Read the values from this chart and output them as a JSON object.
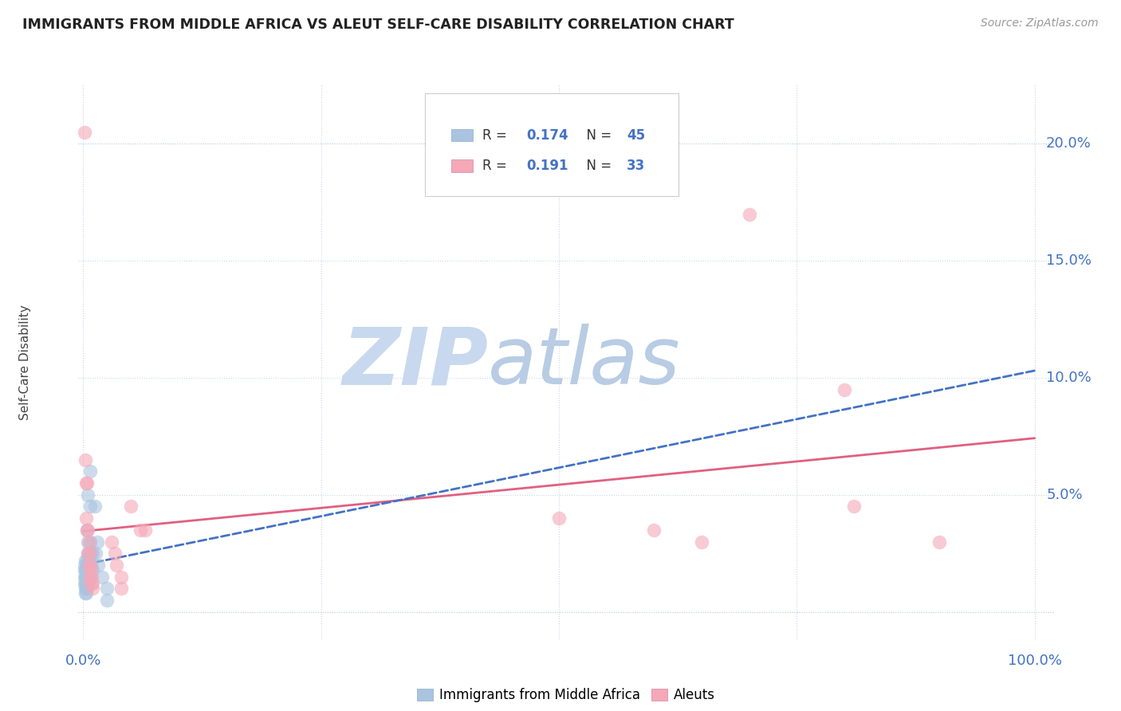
{
  "title": "IMMIGRANTS FROM MIDDLE AFRICA VS ALEUT SELF-CARE DISABILITY CORRELATION CHART",
  "source": "Source: ZipAtlas.com",
  "ylabel": "Self-Care Disability",
  "y_ticks": [
    0.0,
    0.05,
    0.1,
    0.15,
    0.2
  ],
  "y_tick_labels": [
    "",
    "5.0%",
    "10.0%",
    "15.0%",
    "20.0%"
  ],
  "R_blue": 0.174,
  "N_blue": 45,
  "R_pink": 0.191,
  "N_pink": 33,
  "blue_color": "#aac4e0",
  "pink_color": "#f4a8b8",
  "trendline_blue_color": "#4472c4",
  "trendline_pink_color": "#e06080",
  "blue_points": [
    [
      0.001,
      0.02
    ],
    [
      0.001,
      0.018
    ],
    [
      0.001,
      0.015
    ],
    [
      0.001,
      0.012
    ],
    [
      0.002,
      0.022
    ],
    [
      0.002,
      0.018
    ],
    [
      0.002,
      0.015
    ],
    [
      0.002,
      0.012
    ],
    [
      0.002,
      0.01
    ],
    [
      0.002,
      0.008
    ],
    [
      0.003,
      0.02
    ],
    [
      0.003,
      0.018
    ],
    [
      0.003,
      0.015
    ],
    [
      0.003,
      0.012
    ],
    [
      0.003,
      0.01
    ],
    [
      0.003,
      0.008
    ],
    [
      0.004,
      0.035
    ],
    [
      0.004,
      0.022
    ],
    [
      0.004,
      0.018
    ],
    [
      0.004,
      0.015
    ],
    [
      0.004,
      0.012
    ],
    [
      0.004,
      0.01
    ],
    [
      0.005,
      0.05
    ],
    [
      0.005,
      0.03
    ],
    [
      0.005,
      0.025
    ],
    [
      0.005,
      0.02
    ],
    [
      0.005,
      0.015
    ],
    [
      0.005,
      0.012
    ],
    [
      0.006,
      0.025
    ],
    [
      0.006,
      0.02
    ],
    [
      0.006,
      0.015
    ],
    [
      0.007,
      0.06
    ],
    [
      0.007,
      0.045
    ],
    [
      0.007,
      0.03
    ],
    [
      0.008,
      0.025
    ],
    [
      0.008,
      0.02
    ],
    [
      0.01,
      0.025
    ],
    [
      0.01,
      0.018
    ],
    [
      0.012,
      0.045
    ],
    [
      0.013,
      0.025
    ],
    [
      0.015,
      0.03
    ],
    [
      0.016,
      0.02
    ],
    [
      0.02,
      0.015
    ],
    [
      0.025,
      0.01
    ],
    [
      0.025,
      0.005
    ]
  ],
  "pink_points": [
    [
      0.001,
      0.205
    ],
    [
      0.002,
      0.065
    ],
    [
      0.003,
      0.055
    ],
    [
      0.003,
      0.04
    ],
    [
      0.004,
      0.055
    ],
    [
      0.004,
      0.035
    ],
    [
      0.005,
      0.035
    ],
    [
      0.005,
      0.025
    ],
    [
      0.006,
      0.03
    ],
    [
      0.006,
      0.02
    ],
    [
      0.007,
      0.025
    ],
    [
      0.007,
      0.02
    ],
    [
      0.007,
      0.015
    ],
    [
      0.008,
      0.018
    ],
    [
      0.008,
      0.012
    ],
    [
      0.009,
      0.015
    ],
    [
      0.01,
      0.012
    ],
    [
      0.01,
      0.01
    ],
    [
      0.03,
      0.03
    ],
    [
      0.033,
      0.025
    ],
    [
      0.035,
      0.02
    ],
    [
      0.04,
      0.015
    ],
    [
      0.04,
      0.01
    ],
    [
      0.05,
      0.045
    ],
    [
      0.06,
      0.035
    ],
    [
      0.065,
      0.035
    ],
    [
      0.5,
      0.04
    ],
    [
      0.6,
      0.035
    ],
    [
      0.65,
      0.03
    ],
    [
      0.7,
      0.17
    ],
    [
      0.8,
      0.095
    ],
    [
      0.81,
      0.045
    ],
    [
      0.9,
      0.03
    ]
  ],
  "background_color": "#ffffff",
  "grid_color": "#c8d4e8",
  "watermark_zip": "ZIP",
  "watermark_atlas": "atlas",
  "watermark_color_zip": "#c8d8ee",
  "watermark_color_atlas": "#b8cce4"
}
